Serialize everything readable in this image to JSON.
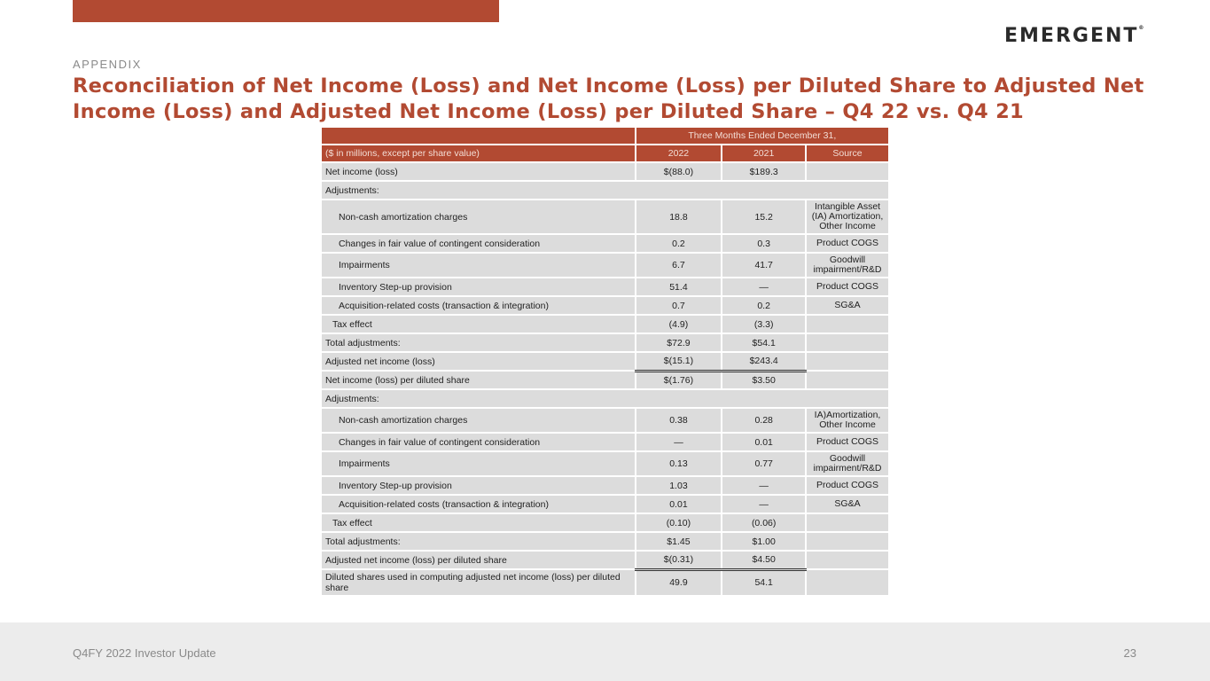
{
  "brand": {
    "logo": "EMERGENT",
    "accent": "#b24a32"
  },
  "header": {
    "section": "APPENDIX",
    "title": "Reconciliation of Net Income (Loss) and Net Income (Loss) per Diluted Share to Adjusted Net Income (Loss) and Adjusted Net Income (Loss) per Diluted Share – Q4 22 vs. Q4 21"
  },
  "table": {
    "period": "Three Months Ended December 31,",
    "unit_label": "($ in millions, except per share value)",
    "columns": [
      "2022",
      "2021",
      "Source"
    ],
    "rows": [
      {
        "label": "Net income (loss)",
        "v2022": "$(88.0)",
        "v2021": "$189.3",
        "source": "",
        "indent": 0
      },
      {
        "label": "Adjustments:",
        "v2022": "",
        "v2021": "",
        "source": "",
        "indent": 0,
        "span": true
      },
      {
        "label": "Non-cash amortization charges",
        "v2022": "18.8",
        "v2021": "15.2",
        "source": "Intangible Asset (IA) Amortization, Other Income",
        "indent": 2
      },
      {
        "label": "Changes in fair value of contingent consideration",
        "v2022": "0.2",
        "v2021": "0.3",
        "source": "Product COGS",
        "indent": 2
      },
      {
        "label": "Impairments",
        "v2022": "6.7",
        "v2021": "41.7",
        "source": "Goodwill impairment/R&D",
        "indent": 2
      },
      {
        "label": "Inventory Step-up provision",
        "v2022": "51.4",
        "v2021": "—",
        "source": "Product COGS",
        "indent": 2
      },
      {
        "label": "Acquisition-related costs (transaction & integration)",
        "v2022": "0.7",
        "v2021": "0.2",
        "source": "SG&A",
        "indent": 2
      },
      {
        "label": "Tax effect",
        "v2022": "(4.9)",
        "v2021": "(3.3)",
        "source": "",
        "indent": 1
      },
      {
        "label": "Total adjustments:",
        "v2022": "$72.9",
        "v2021": "$54.1",
        "source": "",
        "indent": 0,
        "style": "total"
      },
      {
        "label": "Adjusted net income (loss)",
        "v2022": "$(15.1)",
        "v2021": "$243.4",
        "source": "",
        "indent": 0,
        "style": "grand"
      },
      {
        "label": "Net income (loss) per diluted share",
        "v2022": "$(1.76)",
        "v2021": "$3.50",
        "source": "",
        "indent": 0
      },
      {
        "label": "Adjustments:",
        "v2022": "",
        "v2021": "",
        "source": "",
        "indent": 0,
        "span": true
      },
      {
        "label": "Non-cash amortization charges",
        "v2022": "0.38",
        "v2021": "0.28",
        "source": "IA)Amortization, Other Income",
        "indent": 2
      },
      {
        "label": "Changes in fair value of contingent consideration",
        "v2022": "—",
        "v2021": "0.01",
        "source": "Product COGS",
        "indent": 2
      },
      {
        "label": "Impairments",
        "v2022": "0.13",
        "v2021": "0.77",
        "source": "Goodwill impairment/R&D",
        "indent": 2
      },
      {
        "label": "Inventory Step-up provision",
        "v2022": "1.03",
        "v2021": "—",
        "source": "Product COGS",
        "indent": 2
      },
      {
        "label": "Acquisition-related costs (transaction & integration)",
        "v2022": "0.01",
        "v2021": "—",
        "source": "SG&A",
        "indent": 2
      },
      {
        "label": "Tax effect",
        "v2022": "(0.10)",
        "v2021": "(0.06)",
        "source": "",
        "indent": 1
      },
      {
        "label": "Total adjustments:",
        "v2022": "$1.45",
        "v2021": "$1.00",
        "source": "",
        "indent": 0,
        "style": "total"
      },
      {
        "label": "Adjusted net income (loss) per diluted share",
        "v2022": "$(0.31)",
        "v2021": "$4.50",
        "source": "",
        "indent": 0,
        "style": "grand"
      },
      {
        "label": "Diluted shares used in computing adjusted net income (loss) per diluted share",
        "v2022": "49.9",
        "v2021": "54.1",
        "source": "",
        "indent": 0
      }
    ]
  },
  "footer": {
    "left": "Q4FY 2022 Investor Update",
    "page": "23"
  }
}
